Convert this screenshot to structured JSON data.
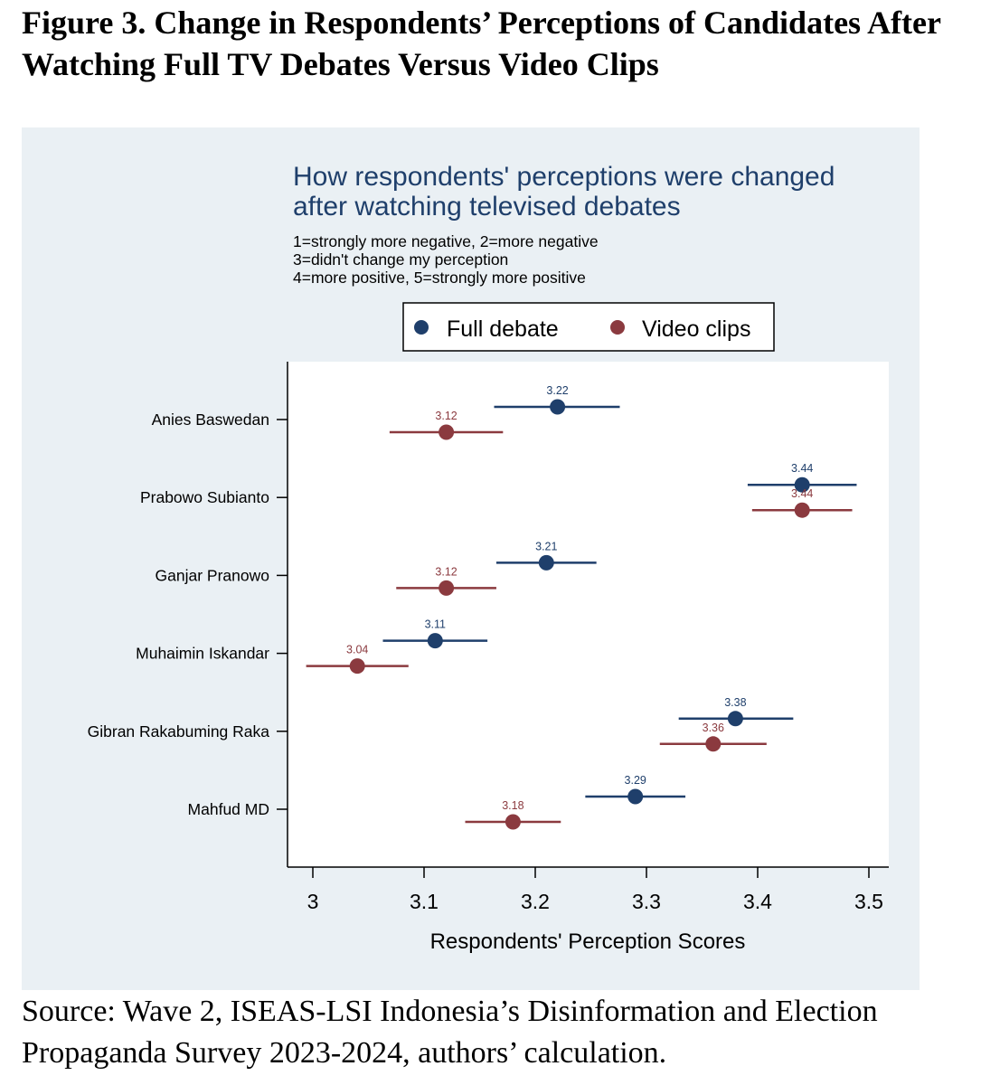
{
  "figure_title": "Figure 3. Change in Respondents’ Perceptions of Candidates After Watching Full TV Debates Versus Video Clips",
  "source_note": "Source: Wave 2, ISEAS-LSI Indonesia’s Disinformation and Election Propaganda Survey 2023-2024, authors’ calculation.",
  "colors": {
    "full_debate": "#1f3f6b",
    "video_clips": "#8b3a3f",
    "panel_bg": "#eaf0f4",
    "plot_bg": "#ffffff",
    "title_text": "#1f3f6b"
  },
  "chart_data": {
    "type": "scatter",
    "title": "How respondents' perceptions were changed after watching televised debates",
    "subtitle_lines": [
      "1=strongly more negative, 2=more negative",
      "3=didn't change my perception",
      "4=more positive, 5=strongly more positive"
    ],
    "xlabel": "Respondents' Perception Scores",
    "ylabel": "",
    "xlim": [
      2.99,
      3.51
    ],
    "xticks": [
      "3",
      "3.1",
      "3.2",
      "3.3",
      "3.4",
      "3.5"
    ],
    "legend_placement": "top",
    "categories": [
      "Anies Baswedan",
      "Prabowo Subianto",
      "Ganjar Pranowo",
      "Muhaimin Iskandar",
      "Gibran Rakabuming Raka",
      "Mahfud MD"
    ],
    "series": [
      {
        "name": "Full debate",
        "values": [
          3.22,
          3.44,
          3.21,
          3.11,
          3.38,
          3.29
        ],
        "labels": [
          "3.22",
          "3.44",
          "3.21",
          "3.11",
          "3.38",
          "3.29"
        ],
        "ci_low": [
          3.163,
          3.391,
          3.165,
          3.063,
          3.329,
          3.245
        ],
        "ci_high": [
          3.276,
          3.489,
          3.255,
          3.157,
          3.432,
          3.335
        ]
      },
      {
        "name": "Video clips",
        "values": [
          3.12,
          3.44,
          3.12,
          3.04,
          3.36,
          3.18
        ],
        "labels": [
          "3.12",
          "3.44",
          "3.12",
          "3.04",
          "3.36",
          "3.18"
        ],
        "ci_low": [
          3.069,
          3.395,
          3.075,
          2.994,
          3.312,
          3.137
        ],
        "ci_high": [
          3.171,
          3.485,
          3.165,
          3.086,
          3.408,
          3.223
        ]
      }
    ]
  }
}
